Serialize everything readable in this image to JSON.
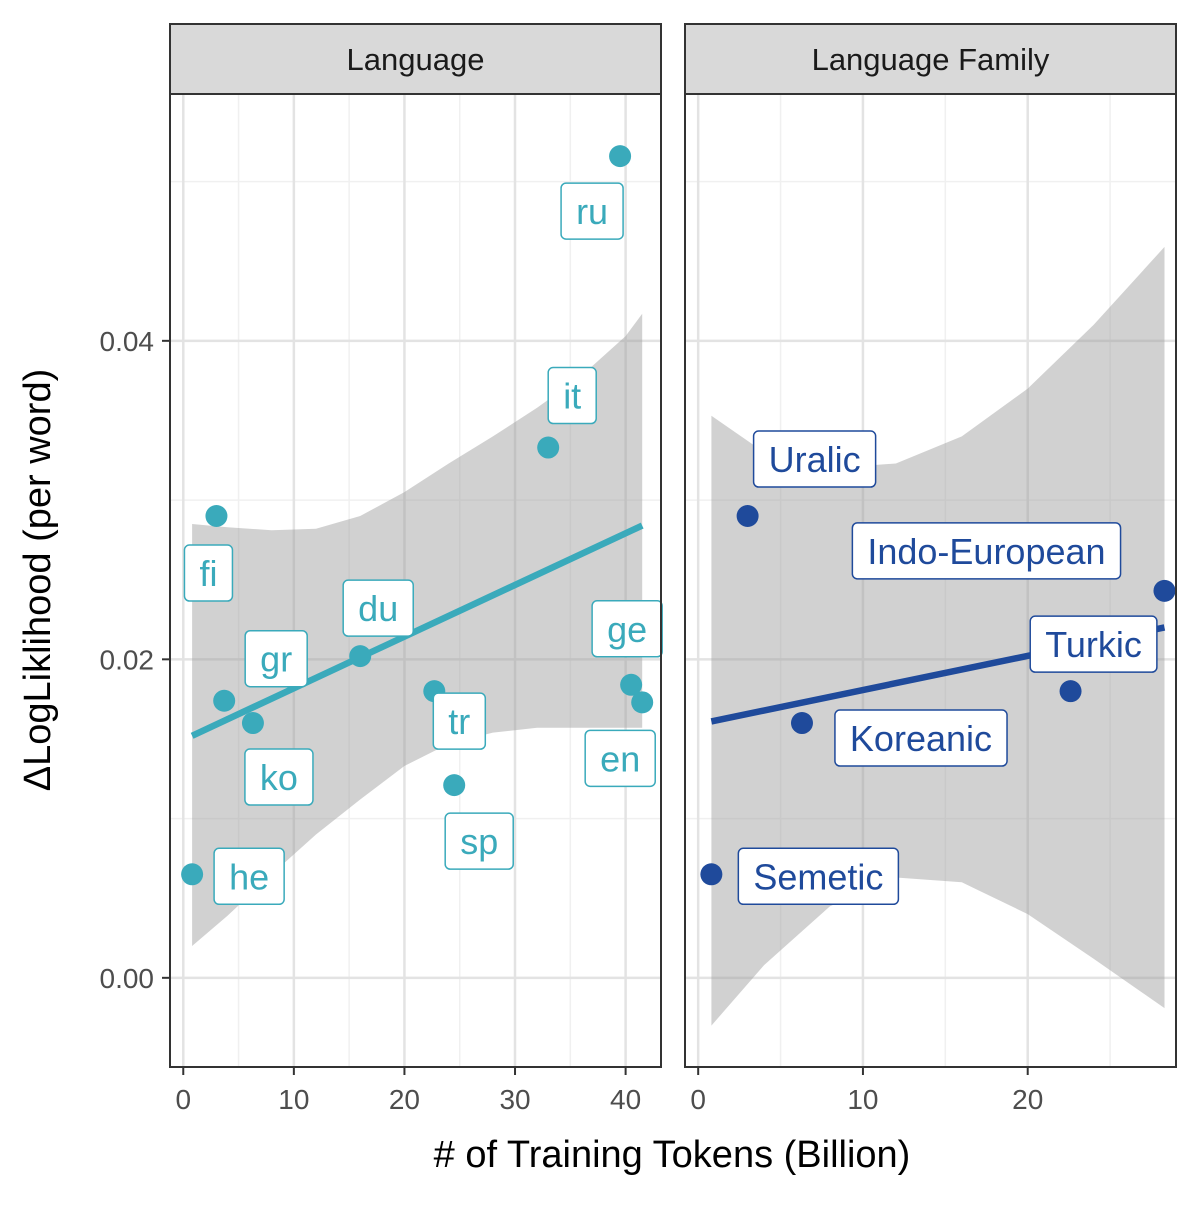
{
  "chart_data": [
    {
      "type": "scatter",
      "facet_label": "Language",
      "xlabel": "# of Training Tokens (Billion)",
      "ylabel": "ΔLogLiklihood (per word)",
      "xlim": [
        -1.2,
        43.2
      ],
      "ylim": [
        -0.0056,
        0.0555
      ],
      "x_ticks": [
        0,
        10,
        20,
        30,
        40
      ],
      "x_tick_labels": [
        "0",
        "10",
        "20",
        "30",
        "40"
      ],
      "y_ticks": [
        0.0,
        0.02,
        0.04
      ],
      "y_tick_labels": [
        "0.00",
        "0.02",
        "0.04"
      ],
      "grid": true,
      "color": "#3aaabb",
      "points": [
        {
          "label": "ru",
          "x": 39.5,
          "y": 0.0516
        },
        {
          "label": "it",
          "x": 33.0,
          "y": 0.0333
        },
        {
          "label": "fi",
          "x": 3.0,
          "y": 0.029
        },
        {
          "label": "du",
          "x": 16.0,
          "y": 0.0202
        },
        {
          "label": "ge",
          "x": 40.5,
          "y": 0.0184
        },
        {
          "label": "en",
          "x": 41.5,
          "y": 0.0173
        },
        {
          "label": "gr",
          "x": 3.7,
          "y": 0.0174
        },
        {
          "label": "ko",
          "x": 6.3,
          "y": 0.016
        },
        {
          "label": "tr",
          "x": 22.7,
          "y": 0.018
        },
        {
          "label": "sp",
          "x": 24.5,
          "y": 0.0121
        },
        {
          "label": "he",
          "x": 0.8,
          "y": 0.0065
        }
      ],
      "fit_line": {
        "x": [
          0.8,
          41.5
        ],
        "y": [
          0.0152,
          0.0284
        ]
      },
      "confidence_band": {
        "x": [
          0.8,
          4,
          8,
          12,
          16,
          20,
          24,
          28,
          32,
          36,
          40,
          41.5
        ],
        "upper": [
          0.0285,
          0.0283,
          0.0281,
          0.0282,
          0.029,
          0.0305,
          0.0323,
          0.034,
          0.0358,
          0.0378,
          0.0403,
          0.0417
        ],
        "lower": [
          0.002,
          0.0039,
          0.0065,
          0.009,
          0.0112,
          0.0133,
          0.0147,
          0.0154,
          0.0157,
          0.0157,
          0.0157,
          0.0157
        ]
      }
    },
    {
      "type": "scatter",
      "facet_label": "Language Family",
      "xlim": [
        -0.8,
        29.0
      ],
      "ylim": [
        -0.0056,
        0.0555
      ],
      "x_ticks": [
        0,
        10,
        20
      ],
      "x_tick_labels": [
        "0",
        "10",
        "20"
      ],
      "y_ticks": [
        0.0,
        0.02,
        0.04
      ],
      "grid": true,
      "color": "#1f4a9b",
      "points": [
        {
          "label": "Uralic",
          "x": 3.0,
          "y": 0.029
        },
        {
          "label": "Indo-European",
          "x": 28.3,
          "y": 0.0243
        },
        {
          "label": "Turkic",
          "x": 22.6,
          "y": 0.018
        },
        {
          "label": "Koreanic",
          "x": 6.3,
          "y": 0.016
        },
        {
          "label": "Semetic",
          "x": 0.8,
          "y": 0.0065
        }
      ],
      "fit_line": {
        "x": [
          0.8,
          28.3
        ],
        "y": [
          0.0161,
          0.022
        ]
      },
      "confidence_band": {
        "x": [
          0.8,
          4,
          8,
          12,
          16,
          20,
          24,
          28.3
        ],
        "upper": [
          0.0353,
          0.033,
          0.032,
          0.0323,
          0.034,
          0.037,
          0.041,
          0.0459
        ],
        "lower": [
          -0.003,
          0.0008,
          0.0045,
          0.0063,
          0.006,
          0.004,
          0.0012,
          -0.0019
        ]
      }
    }
  ]
}
